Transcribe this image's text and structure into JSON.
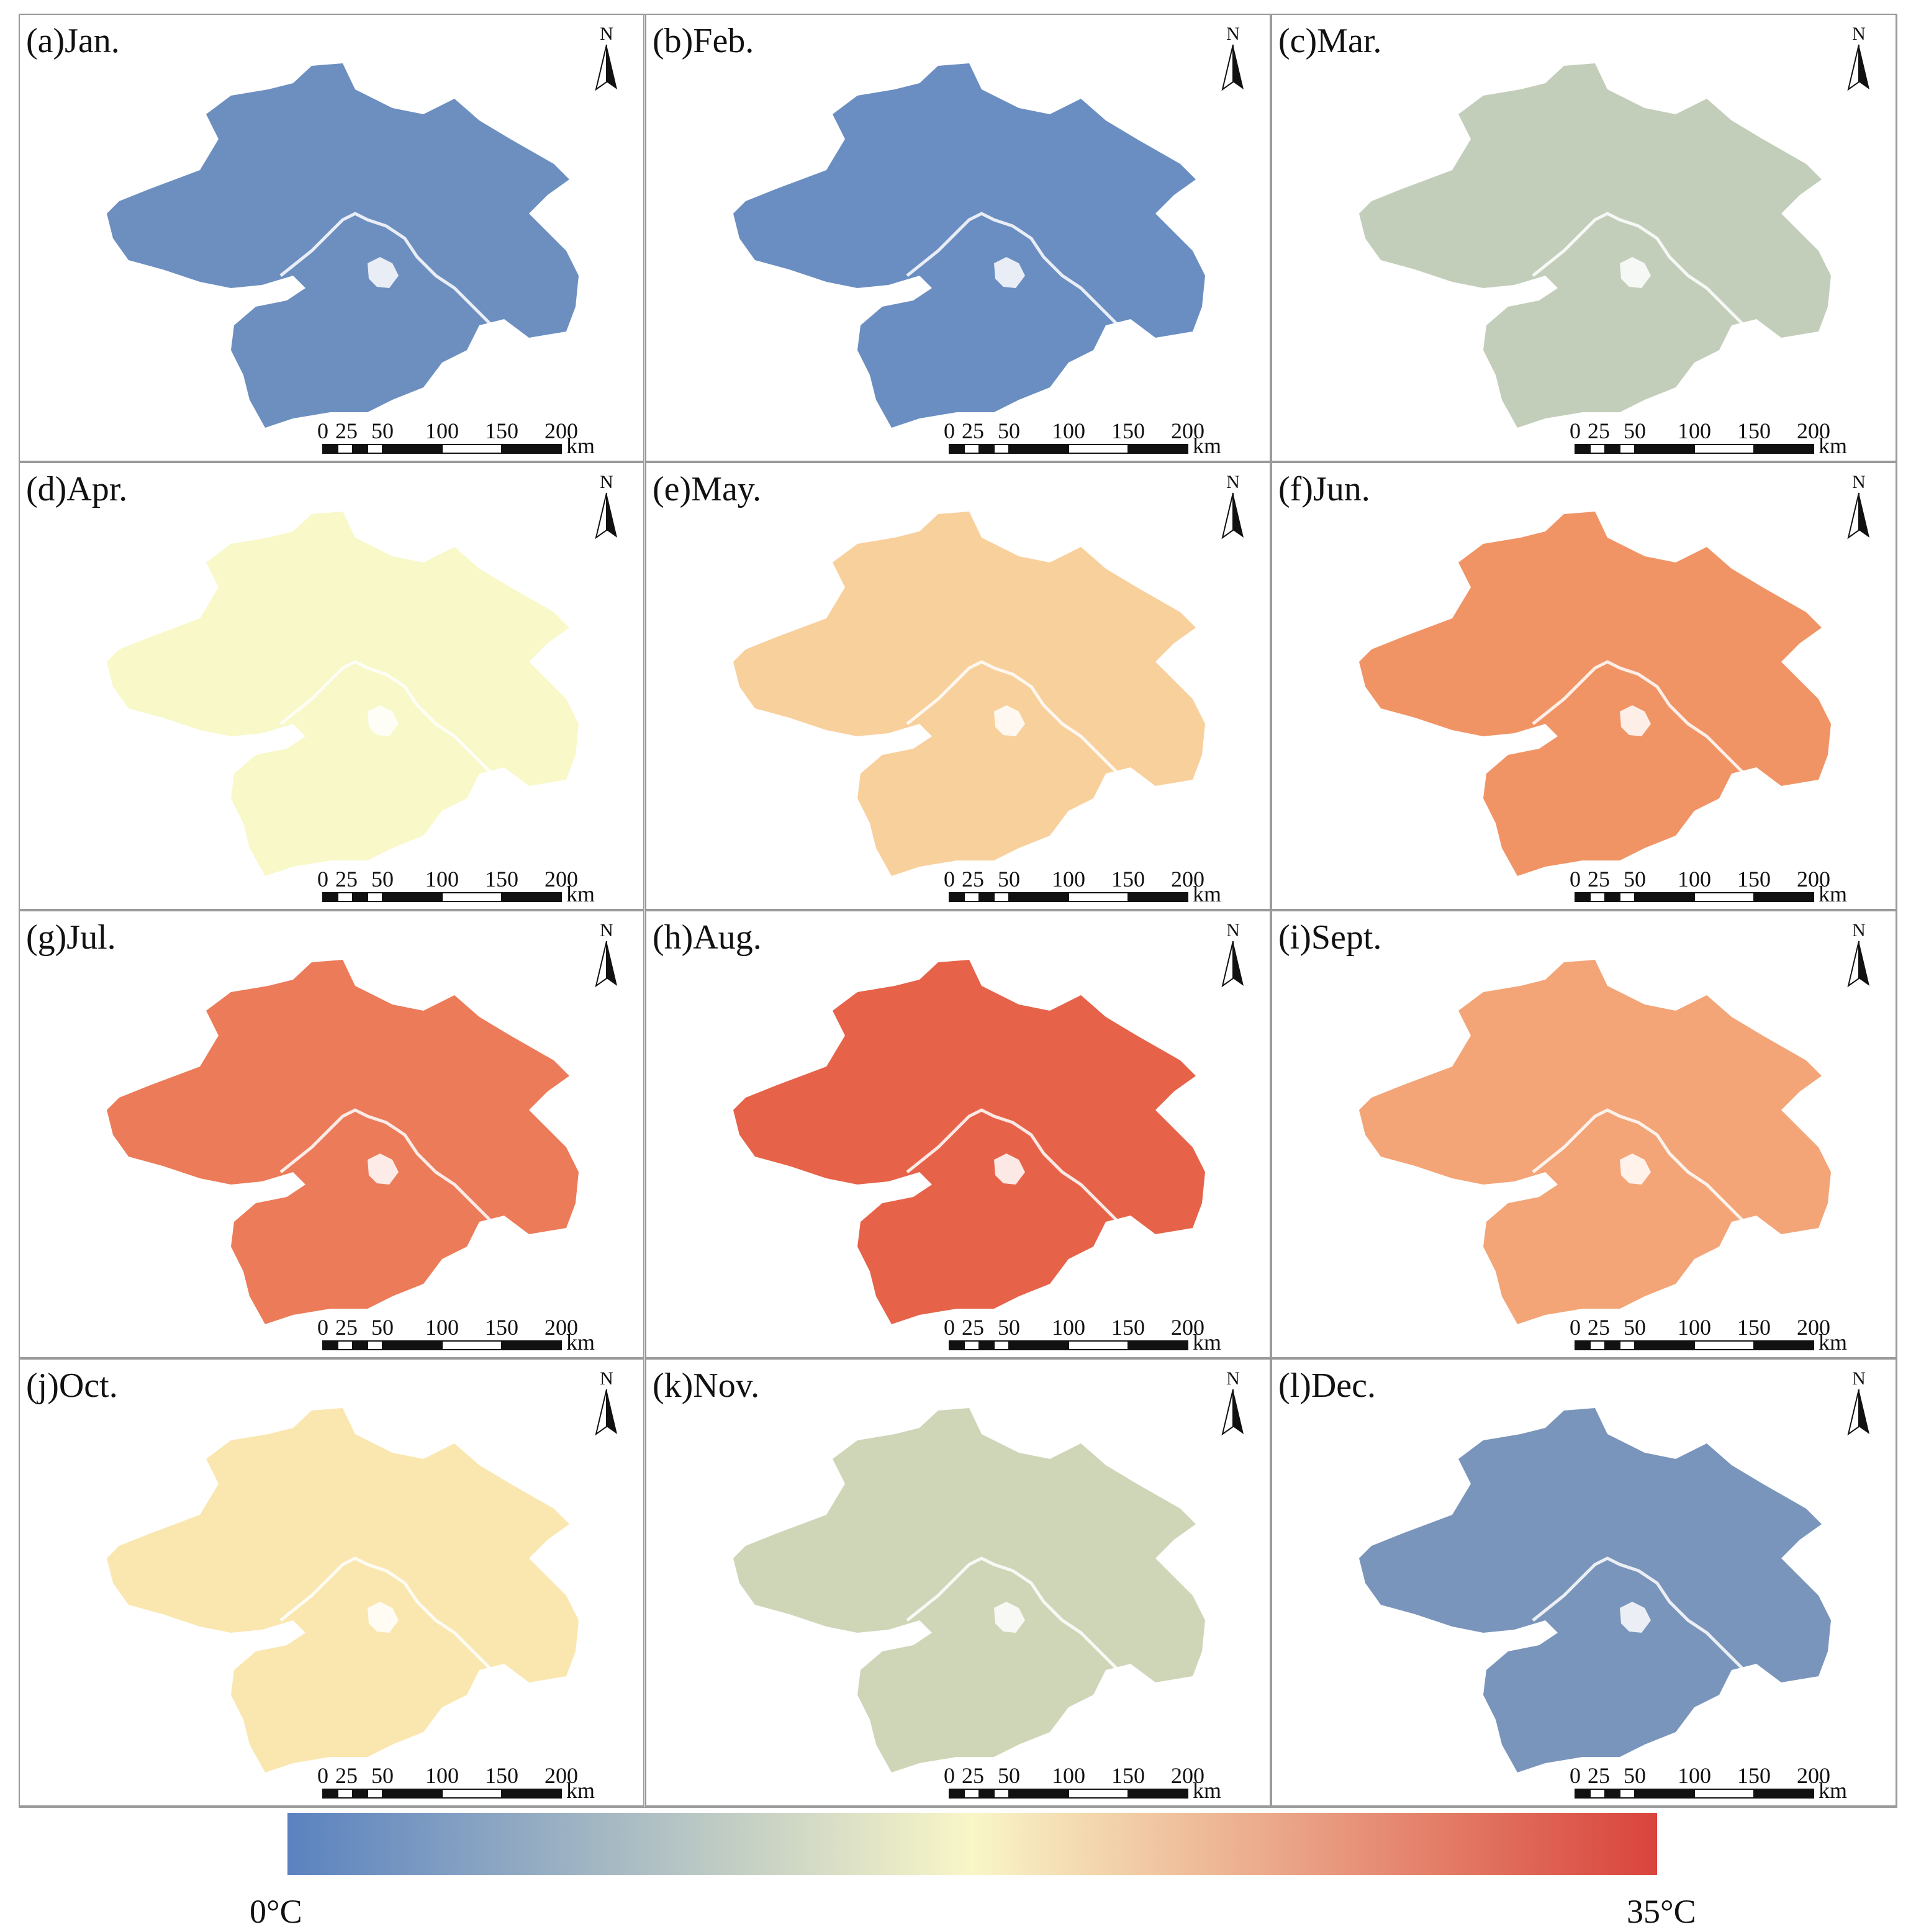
{
  "panels": [
    {
      "label": "(a)Jan.",
      "fill": "#6d8fc0"
    },
    {
      "label": "(b)Feb.",
      "fill": "#6a8ec2"
    },
    {
      "label": "(c)Mar.",
      "fill": "#c3ceba"
    },
    {
      "label": "(d)Apr.",
      "fill": "#f8f8c8"
    },
    {
      "label": "(e)May.",
      "fill": "#f8d09c"
    },
    {
      "label": "(f)Jun.",
      "fill": "#f19465"
    },
    {
      "label": "(g)Jul.",
      "fill": "#ec7b59"
    },
    {
      "label": "(h)Aug.",
      "fill": "#e6634a"
    },
    {
      "label": "(i)Sept.",
      "fill": "#f3a578"
    },
    {
      "label": "(j)Oct.",
      "fill": "#fae7b0"
    },
    {
      "label": "(k)Nov.",
      "fill": "#cfd6b8"
    },
    {
      "label": "(l)Dec.",
      "fill": "#7a95bb"
    }
  ],
  "north_arrow": {
    "label": "N"
  },
  "scale_bar": {
    "ticks": [
      "0",
      "25",
      "50",
      "100",
      "150",
      "200"
    ],
    "unit": "km"
  },
  "legend": {
    "min_label": "0°C",
    "max_label": "35°C",
    "colors": [
      "#5b82c0",
      "#f9f6c7",
      "#d9443c"
    ]
  }
}
